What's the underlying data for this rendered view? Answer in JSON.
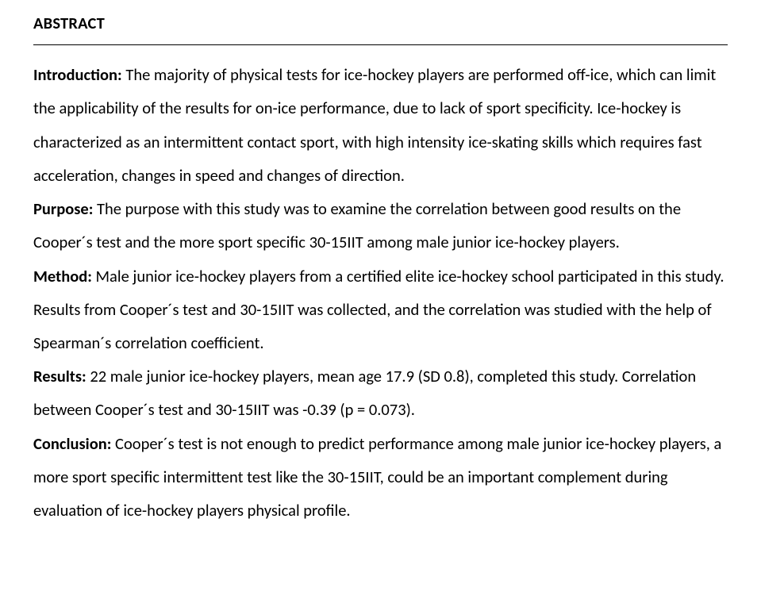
{
  "heading": "ABSTRACT",
  "sections": {
    "intro_label": "Introduction:",
    "intro_text": " The majority of physical tests for ice-hockey players are performed off-ice, which can limit the applicability of the results for on-ice performance, due to lack of sport specificity. Ice-hockey is characterized as an intermittent contact sport, with high intensity ice-skating skills which requires fast acceleration, changes in speed and changes of direction.",
    "purpose_label": "Purpose:",
    "purpose_text": " The purpose with this study was to examine the correlation between good results on the Cooper´s test and the more sport specific 30-15IIT among male junior ice-hockey players.",
    "method_label": "Method:",
    "method_text": " Male junior ice-hockey players from a certified elite ice-hockey school participated in this study. Results from Cooper´s test and 30-15IIT was collected, and the correlation was studied with the help of Spearman´s correlation coefficient.",
    "results_label": "Results:",
    "results_text": " 22 male junior ice-hockey players, mean age 17.9 (SD 0.8), completed this study. Correlation between Cooper´s test and 30-15IIT was -0.39 (p = 0.073).",
    "conclusion_label": "Conclusion:",
    "conclusion_text": " Cooper´s test is not enough to predict performance among male junior ice-hockey players, a more sport specific intermittent test like the 30-15IIT, could be an important complement during evaluation of ice-hockey players physical profile."
  }
}
